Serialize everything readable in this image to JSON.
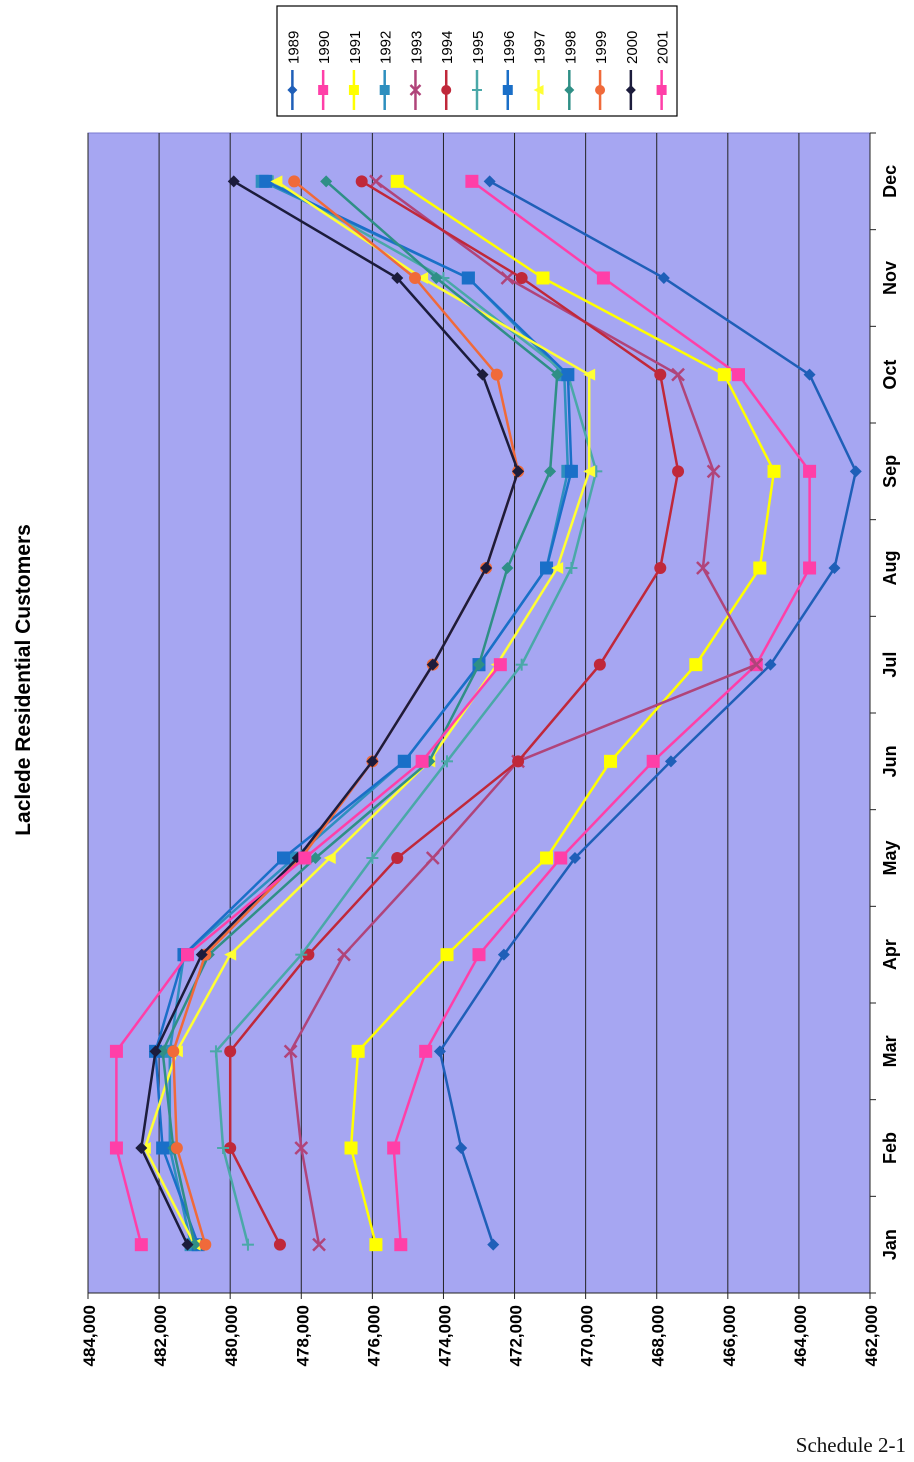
{
  "chart_data": {
    "type": "line",
    "title": "Laclede Residential Customers",
    "orientation": "rotated-90-ccw",
    "categories": [
      "Jan",
      "Feb",
      "Mar",
      "Apr",
      "May",
      "Jun",
      "Jul",
      "Aug",
      "Sep",
      "Oct",
      "Nov",
      "Dec"
    ],
    "ylim": [
      462000,
      484000
    ],
    "yticks": [
      484000,
      482000,
      480000,
      478000,
      476000,
      474000,
      472000,
      470000,
      468000,
      466000,
      464000,
      462000
    ],
    "ytick_labels": [
      "484,000",
      "482,000",
      "480,000",
      "478,000",
      "476,000",
      "474,000",
      "472,000",
      "470,000",
      "468,000",
      "466,000",
      "464,000",
      "462,000"
    ],
    "grid": true,
    "plot_background": "#a6a6f2",
    "legend_position": "top",
    "series": [
      {
        "name": "1989",
        "color": "#1f5fb8",
        "marker": "diamond",
        "values": [
          472600,
          473500,
          474100,
          472300,
          470300,
          467600,
          464800,
          463000,
          462400,
          463700,
          467800,
          472700
        ]
      },
      {
        "name": "1990",
        "color": "#ff3fa8",
        "marker": "square",
        "values": [
          475200,
          475400,
          474500,
          473000,
          470700,
          468100,
          465200,
          463700,
          463700,
          465700,
          469500,
          473200
        ]
      },
      {
        "name": "1991",
        "color": "#ffff00",
        "marker": "square",
        "values": [
          475900,
          476600,
          476400,
          473900,
          471100,
          469300,
          466900,
          465100,
          464700,
          466100,
          471200,
          475300
        ]
      },
      {
        "name": "1992",
        "color": "#2e8fbf",
        "marker": "square",
        "values": [
          481100,
          481700,
          481700,
          481300,
          478200,
          475100,
          473000,
          471100,
          470500,
          470600,
          473300,
          479100
        ]
      },
      {
        "name": "1993",
        "color": "#b0447a",
        "marker": "cross",
        "values": [
          477500,
          478000,
          478300,
          476800,
          474300,
          471900,
          465200,
          466700,
          466400,
          467400,
          472200,
          475900
        ]
      },
      {
        "name": "1994",
        "color": "#c0283a",
        "marker": "circle",
        "values": [
          478600,
          480000,
          480000,
          477800,
          475300,
          471900,
          469600,
          467900,
          467400,
          467900,
          471800,
          476300
        ]
      },
      {
        "name": "1995",
        "color": "#4aa8a8",
        "marker": "plus",
        "values": [
          479500,
          480200,
          480400,
          478000,
          476000,
          473900,
          471800,
          470400,
          469700,
          470500,
          474000,
          478800
        ]
      },
      {
        "name": "1996",
        "color": "#1a6fc8",
        "marker": "square",
        "values": [
          480900,
          481900,
          482100,
          481300,
          478500,
          475100,
          473000,
          471100,
          470400,
          470500,
          473300,
          479000
        ]
      },
      {
        "name": "1997",
        "color": "#ffff33",
        "marker": "triangle",
        "values": [
          481000,
          482400,
          481500,
          480000,
          477200,
          474400,
          472500,
          470800,
          469900,
          469900,
          474600,
          478700
        ]
      },
      {
        "name": "1998",
        "color": "#2f8f86",
        "marker": "diamond",
        "values": [
          481000,
          481600,
          481900,
          480600,
          477600,
          474400,
          473000,
          472200,
          471000,
          470800,
          474200,
          477300
        ]
      },
      {
        "name": "1999",
        "color": "#f06a3a",
        "marker": "circle",
        "values": [
          480700,
          481500,
          481600,
          480700,
          478000,
          476000,
          474300,
          472800,
          471900,
          472500,
          474800,
          478200
        ]
      },
      {
        "name": "2000",
        "color": "#1c1c3c",
        "marker": "diamond",
        "values": [
          481200,
          482500,
          482100,
          480800,
          478100,
          476000,
          474300,
          472800,
          471900,
          472900,
          475300,
          479900
        ]
      },
      {
        "name": "2001",
        "color": "#ff3fa8",
        "marker": "square",
        "values": [
          482500,
          483200,
          483200,
          481200,
          477900,
          474600,
          472400,
          null,
          null,
          null,
          null,
          null
        ]
      }
    ]
  },
  "footer": {
    "text": "Schedule 2-1"
  }
}
